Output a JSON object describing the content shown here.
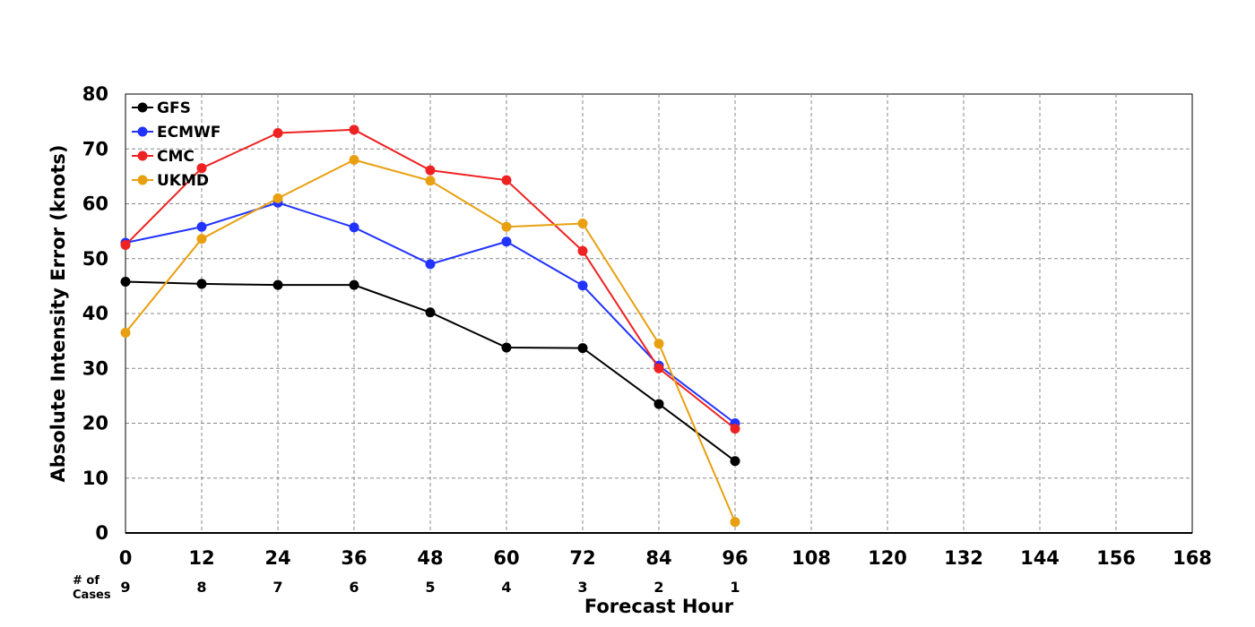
{
  "chart_data": {
    "type": "line",
    "xlabel": "Forecast Hour",
    "ylabel": "Absolute Intensity Error (knots)",
    "xlim": [
      0,
      168
    ],
    "ylim": [
      0,
      80
    ],
    "x_ticks": [
      "0",
      "12",
      "24",
      "36",
      "48",
      "60",
      "72",
      "84",
      "96",
      "108",
      "120",
      "132",
      "144",
      "156",
      "168"
    ],
    "y_ticks": [
      "0",
      "10",
      "20",
      "30",
      "40",
      "50",
      "60",
      "70",
      "80"
    ],
    "grid": true,
    "legend_position": "top-left",
    "x": [
      0,
      12,
      24,
      36,
      48,
      60,
      72,
      84,
      96
    ],
    "series": [
      {
        "name": "GFS",
        "color": "#000000",
        "values": [
          45.8,
          45.4,
          45.2,
          45.2,
          40.2,
          33.8,
          33.7,
          23.5,
          13.1
        ]
      },
      {
        "name": "ECMWF",
        "color": "#2233ff",
        "values": [
          52.9,
          55.8,
          60.2,
          55.7,
          49.0,
          53.1,
          45.1,
          30.5,
          20.0
        ]
      },
      {
        "name": "CMC",
        "color": "#ee2222",
        "values": [
          52.5,
          66.5,
          72.9,
          73.5,
          66.1,
          64.3,
          51.4,
          30.0,
          19.0
        ]
      },
      {
        "name": "UKMD",
        "color": "#e8a010",
        "values": [
          36.5,
          53.6,
          61.0,
          68.0,
          64.2,
          55.8,
          56.4,
          34.5,
          2.0
        ]
      }
    ],
    "cases": {
      "label_line1": "# of",
      "label_line2": "Cases",
      "x": [
        0,
        12,
        24,
        36,
        48,
        60,
        72,
        84,
        96
      ],
      "values": [
        "9",
        "8",
        "7",
        "6",
        "5",
        "4",
        "3",
        "2",
        "1"
      ]
    }
  }
}
